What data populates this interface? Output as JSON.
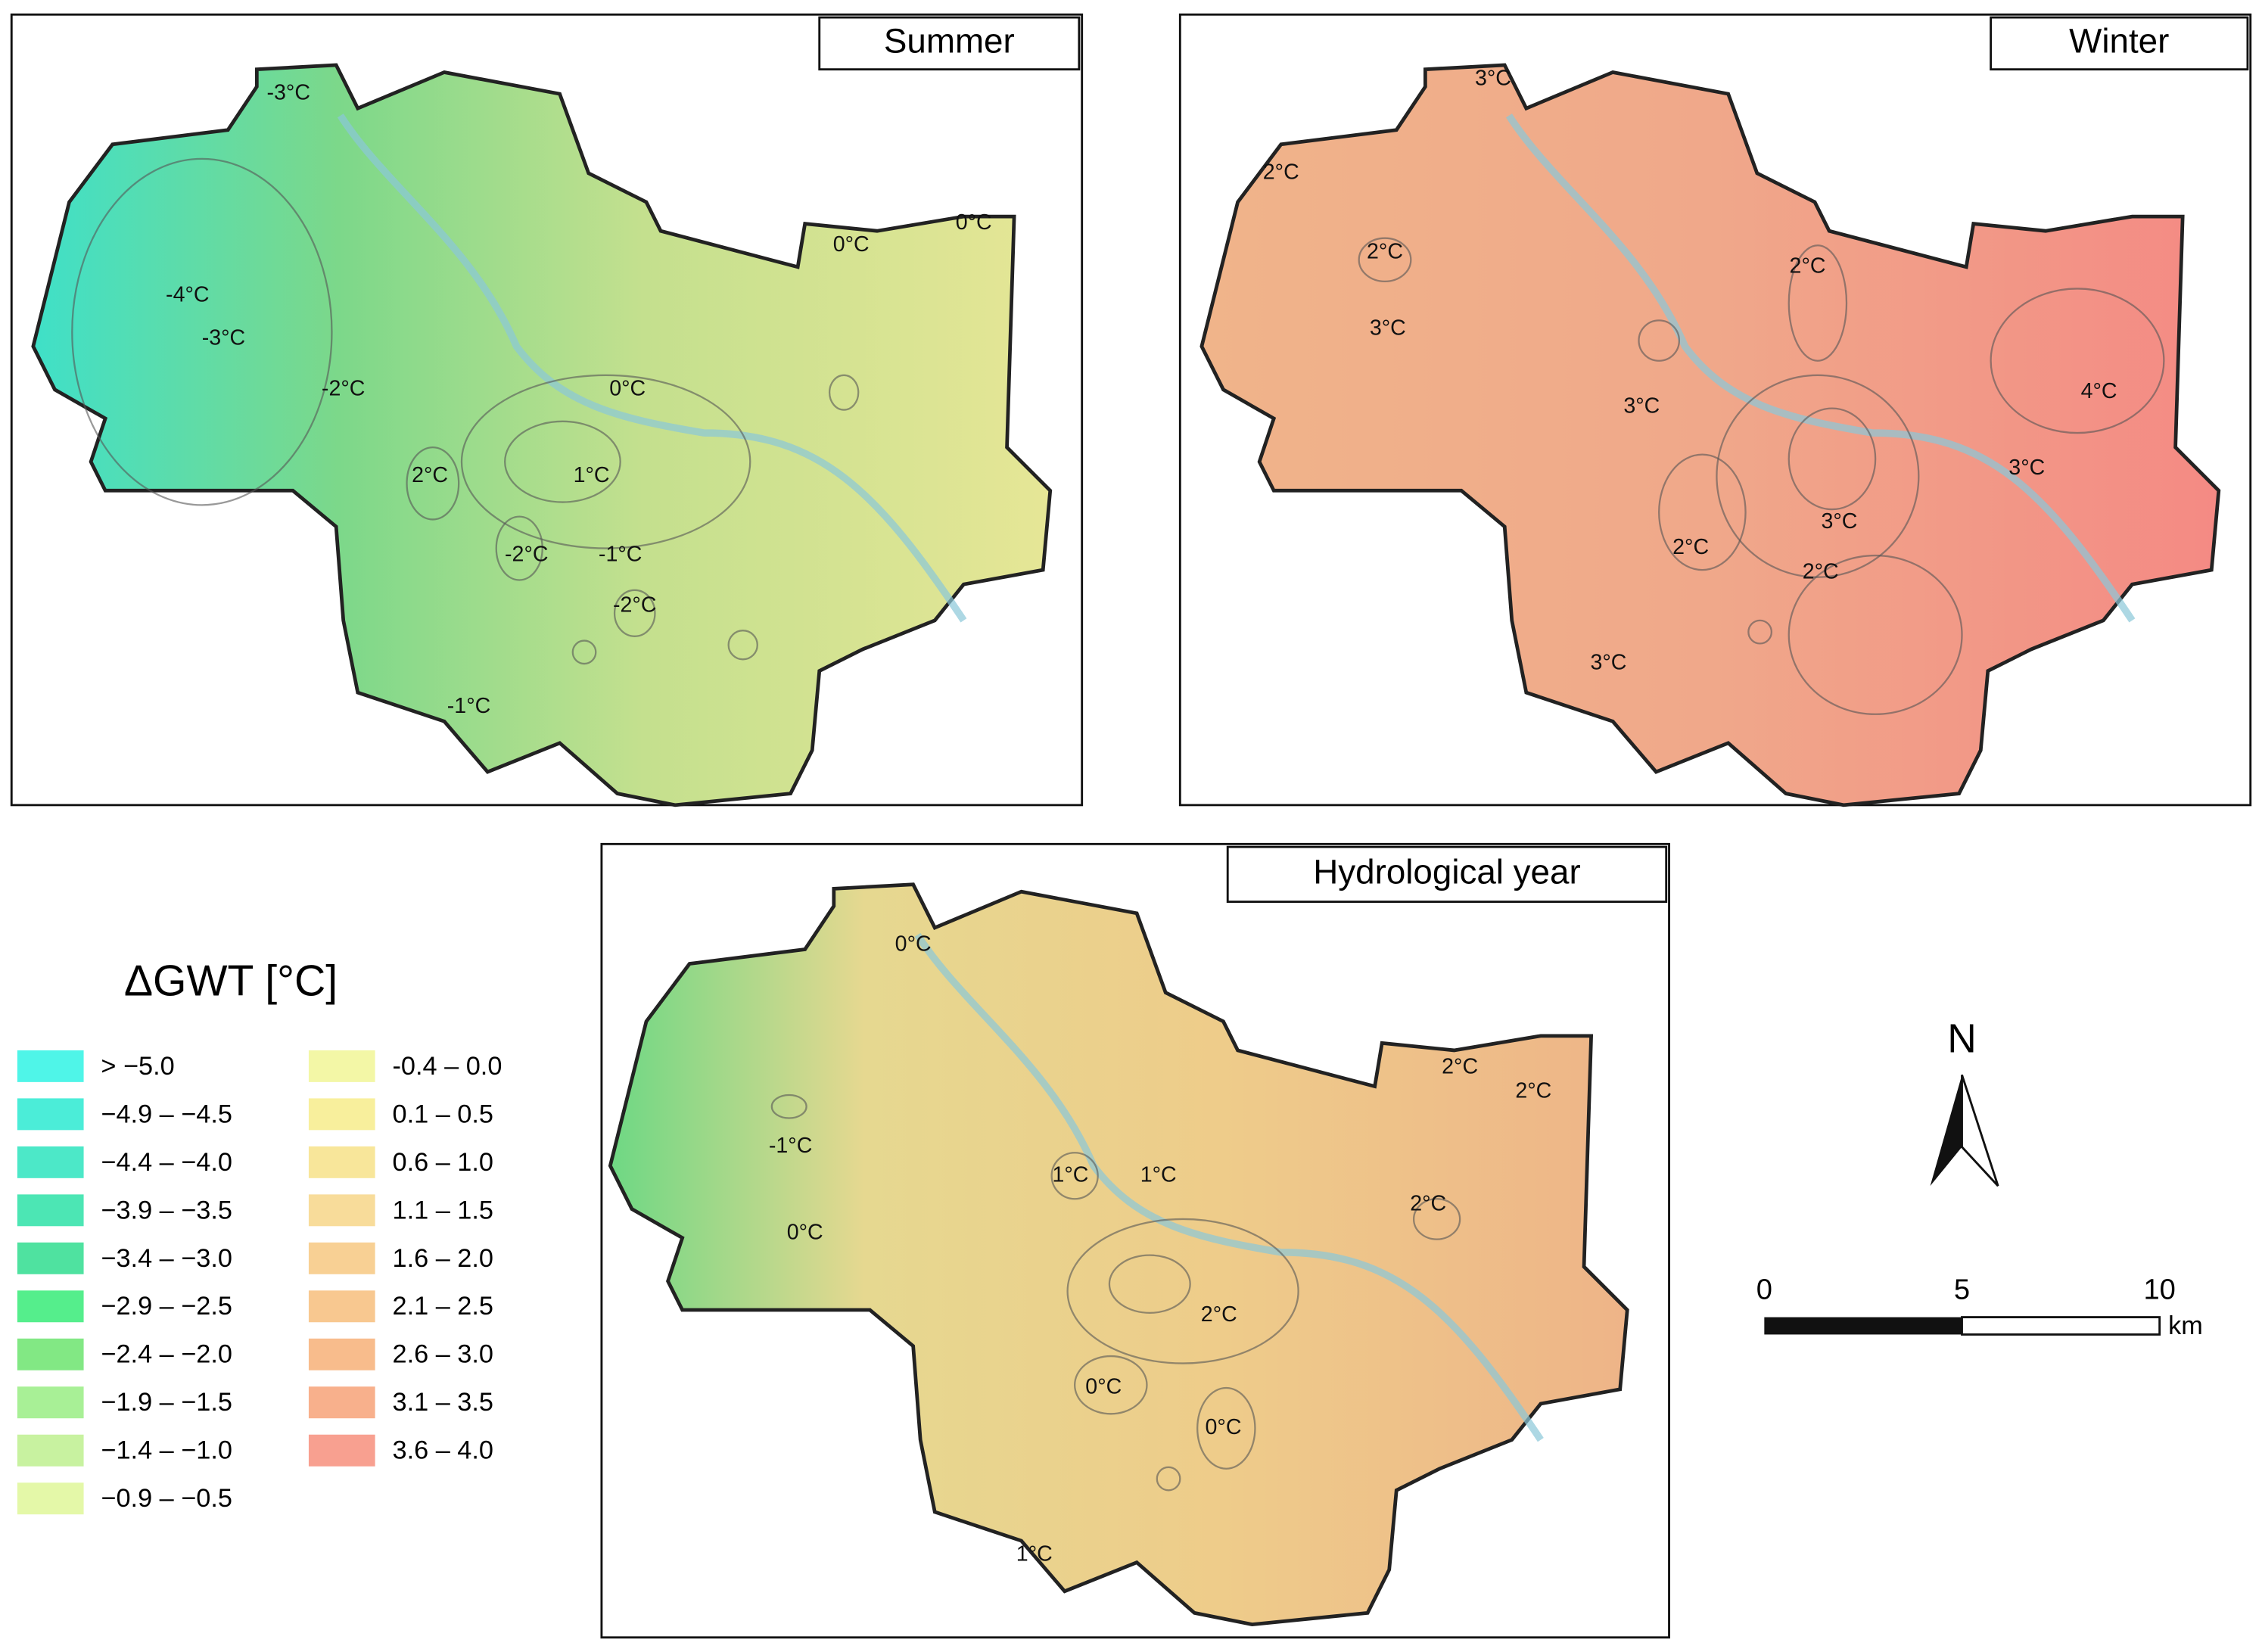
{
  "panels": [
    {
      "title": "Summer",
      "contour_labels": [
        "-3°C",
        "-4°C",
        "-3°C",
        "-2°C",
        "0°C",
        "1°C",
        "2°C",
        "-2°C",
        "-1°C",
        "-2°C",
        "-1°C",
        "0°C",
        "0°C"
      ]
    },
    {
      "title": "Winter",
      "contour_labels": [
        "3°C",
        "2°C",
        "2°C",
        "3°C",
        "2°C",
        "3°C",
        "4°C",
        "3°C",
        "3°C",
        "2°C",
        "2°C",
        "3°C"
      ]
    },
    {
      "title": "Hydrological year",
      "contour_labels": [
        "0°C",
        "-1°C",
        "0°C",
        "1°C",
        "1°C",
        "2°C",
        "2°C",
        "2°C",
        "2°C",
        "0°C",
        "0°C",
        "1°C"
      ]
    }
  ],
  "legend": {
    "title": "ΔGWT [°C]",
    "items": [
      {
        "label": "> −5.0",
        "color": "#4ff5e8"
      },
      {
        "label": "−4.9 – −4.5",
        "color": "#4bedd8"
      },
      {
        "label": "−4.4 – −4.0",
        "color": "#4ce8c8"
      },
      {
        "label": "−3.9 – −3.5",
        "color": "#4ce6b4"
      },
      {
        "label": "−3.4 – −3.0",
        "color": "#4fe2a0"
      },
      {
        "label": "−2.9 – −2.5",
        "color": "#55ee8c"
      },
      {
        "label": "−2.4 – −2.0",
        "color": "#82e884"
      },
      {
        "label": "−1.9 – −1.5",
        "color": "#a8f096"
      },
      {
        "label": "−1.4 – −1.0",
        "color": "#c8f2a0"
      },
      {
        "label": "−0.9 – −0.5",
        "color": "#e4f8a8"
      },
      {
        "label": "-0.4 – 0.0",
        "color": "#f3f7a6"
      },
      {
        "label": "0.1 – 0.5",
        "color": "#f8ef9c"
      },
      {
        "label": "0.6 – 1.0",
        "color": "#f8e69a"
      },
      {
        "label": "1.1 – 1.5",
        "color": "#f8dc9a"
      },
      {
        "label": "1.6 – 2.0",
        "color": "#f8d094"
      },
      {
        "label": "2.1 – 2.5",
        "color": "#f8c890"
      },
      {
        "label": "2.6 – 3.0",
        "color": "#f8bc8c"
      },
      {
        "label": "3.1 – 3.5",
        "color": "#f8b08c"
      },
      {
        "label": "3.6 – 4.0",
        "color": "#f8a090"
      }
    ]
  },
  "north_arrow": "N",
  "scale_bar": {
    "labels": [
      "0",
      "5",
      "10"
    ],
    "unit": "km"
  }
}
